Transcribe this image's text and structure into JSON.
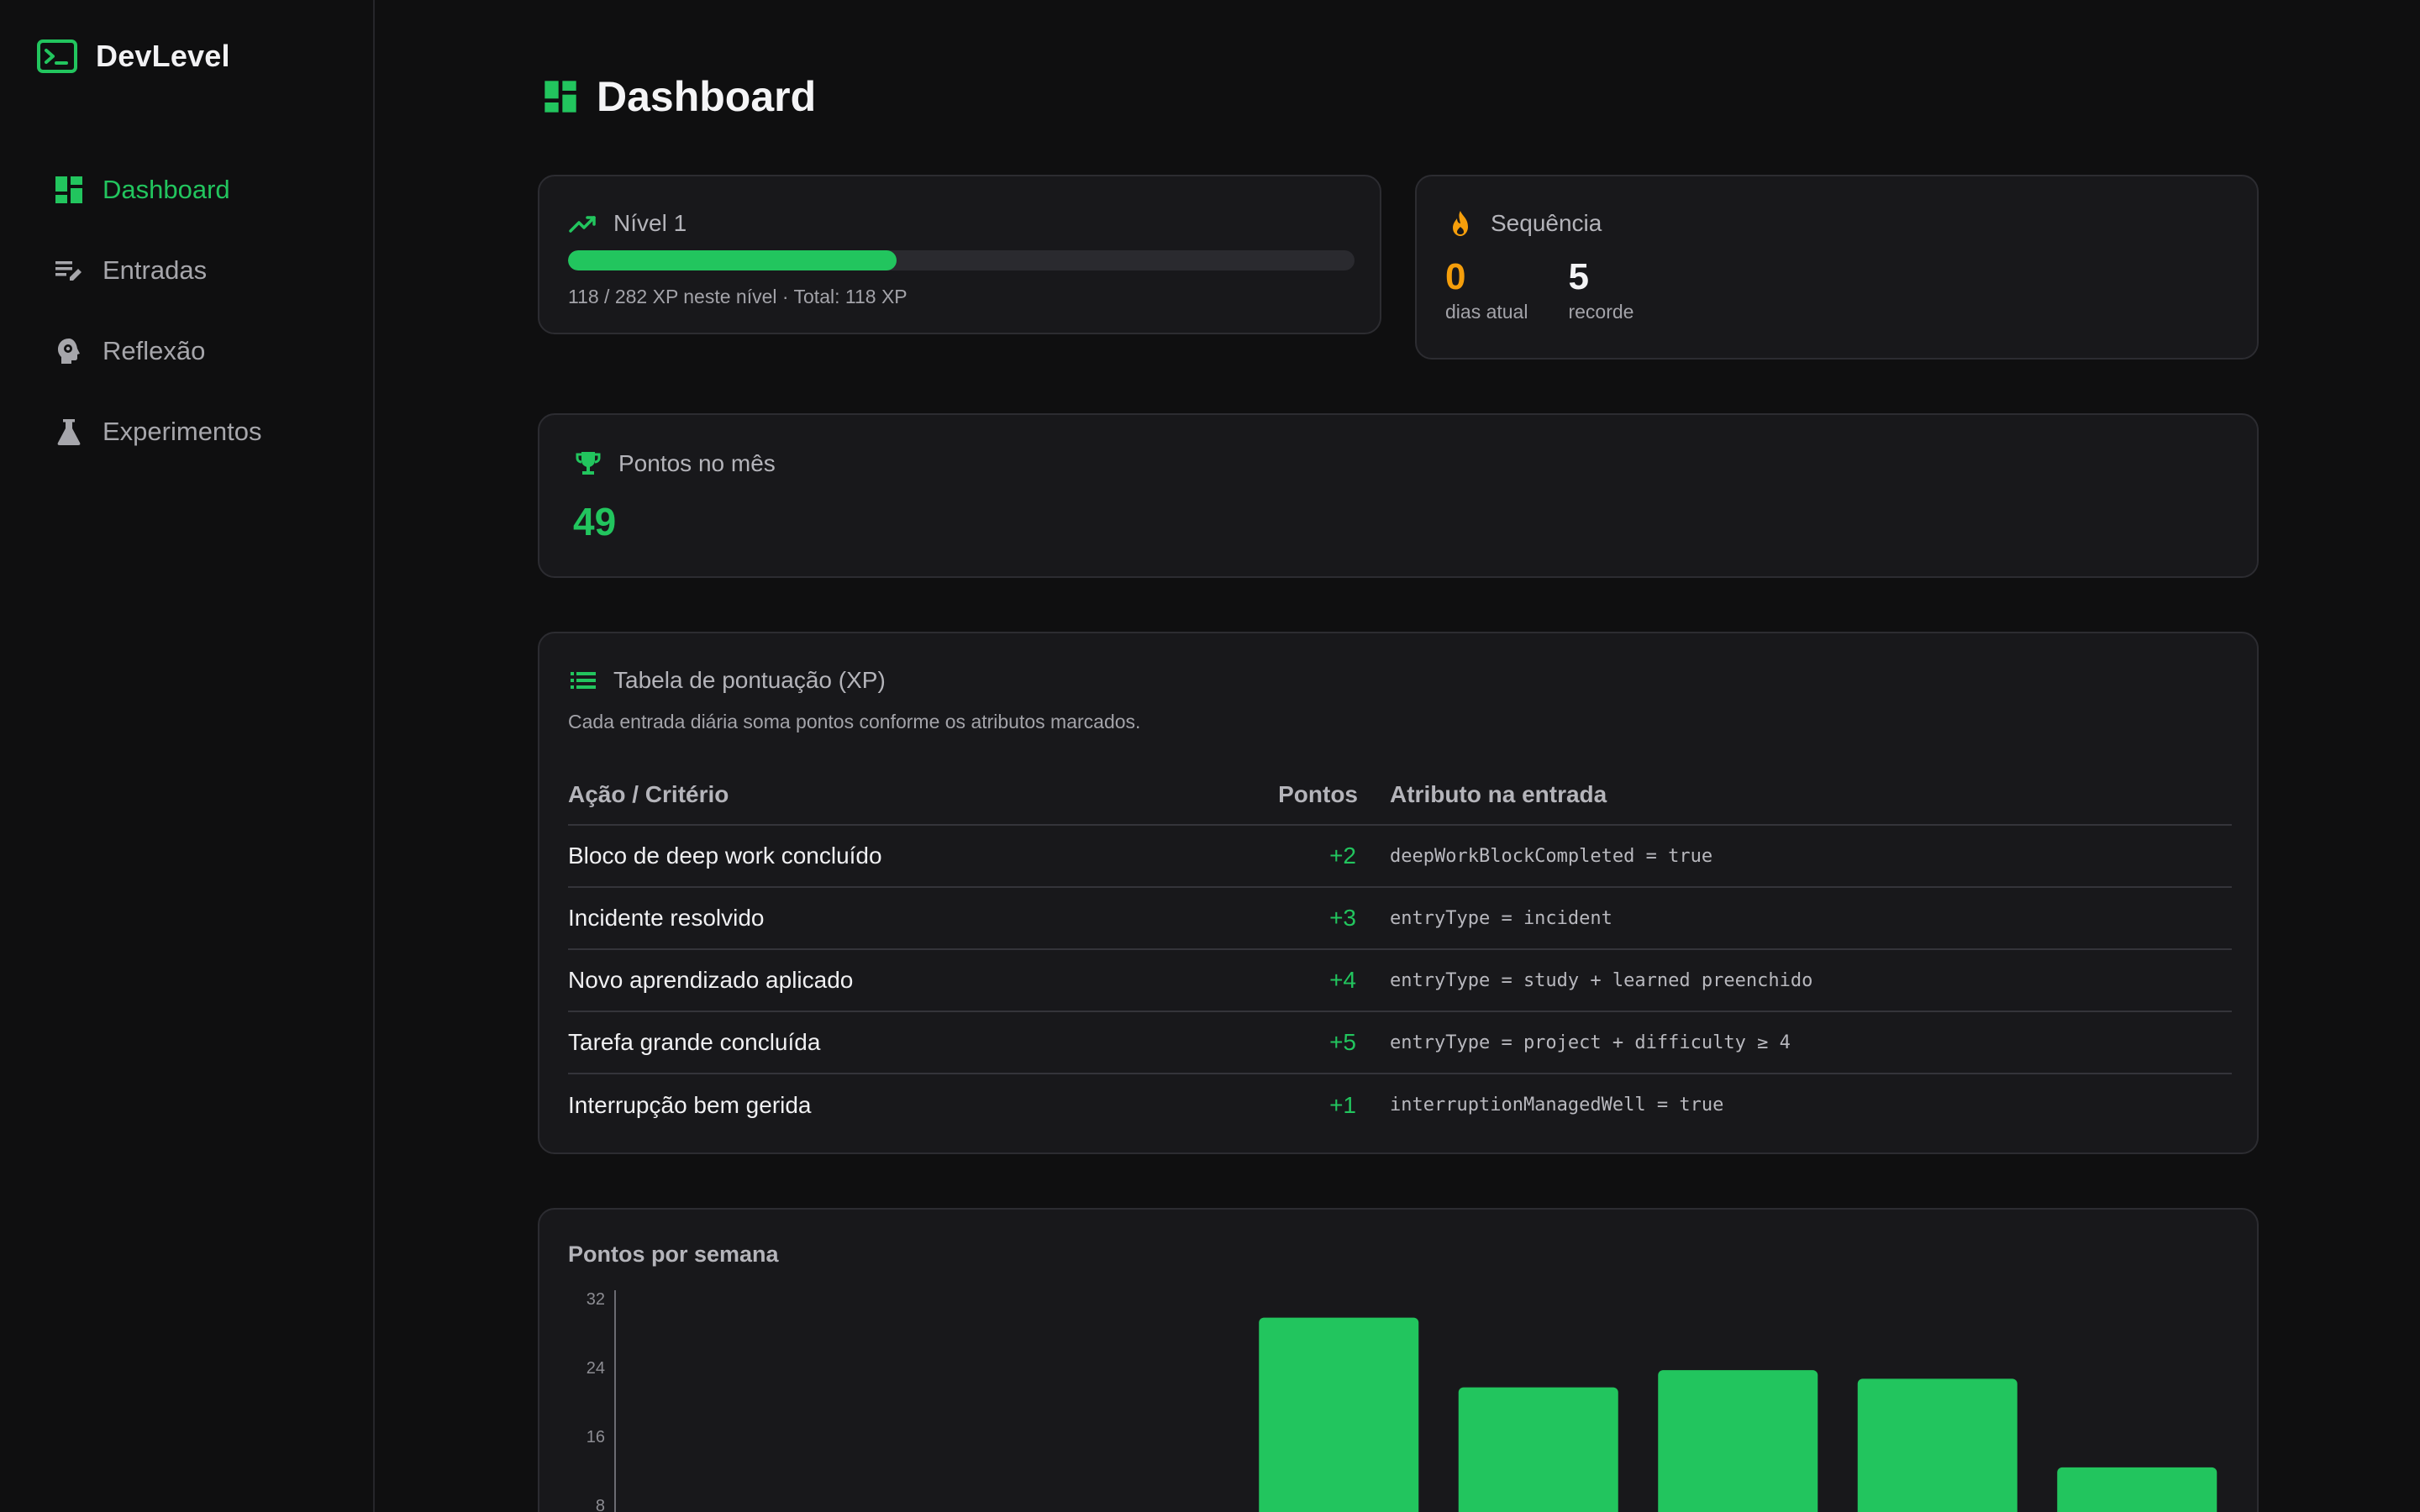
{
  "brand": {
    "name": "DevLevel",
    "accent": "#22c55e"
  },
  "sidebar": {
    "items": [
      {
        "label": "Dashboard",
        "icon": "dashboard-icon",
        "active": true
      },
      {
        "label": "Entradas",
        "icon": "edit-list-icon",
        "active": false
      },
      {
        "label": "Reflexão",
        "icon": "head-gear-icon",
        "active": false
      },
      {
        "label": "Experimentos",
        "icon": "flask-icon",
        "active": false
      }
    ]
  },
  "page": {
    "title": "Dashboard"
  },
  "level": {
    "title": "Nível 1",
    "progress_fraction": 0.418,
    "progress_text": "118 / 282 XP neste nível · Total: 118 XP"
  },
  "streak": {
    "title": "Sequência",
    "current_value": "0",
    "current_label": "dias atual",
    "record_value": "5",
    "record_label": "recorde"
  },
  "points_month": {
    "title": "Pontos no mês",
    "value": "49"
  },
  "xp_table": {
    "title": "Tabela de pontuação (XP)",
    "subtitle": "Cada entrada diária soma pontos conforme os atributos marcados.",
    "headers": [
      "Ação / Critério",
      "Pontos",
      "Atributo na entrada"
    ],
    "rows": [
      [
        "Bloco de deep work concluído",
        "+2",
        "deepWorkBlockCompleted = true"
      ],
      [
        "Incidente resolvido",
        "+3",
        "entryType = incident"
      ],
      [
        "Novo aprendizado aplicado",
        "+4",
        "entryType = study + learned preenchido"
      ],
      [
        "Tarefa grande concluída",
        "+5",
        "entryType = project + difficulty ≥ 4"
      ],
      [
        "Interrupção bem gerida",
        "+1",
        "interruptionManagedWell = true"
      ]
    ]
  },
  "chart_data": {
    "type": "bar",
    "title": "Pontos por semana",
    "ylim": [
      0,
      32
    ],
    "yticks": [
      "32",
      "24",
      "16",
      "8"
    ],
    "values": [
      0,
      0,
      0,
      29.7,
      21.6,
      23.6,
      22.6,
      12.3
    ],
    "color": "#22c55e",
    "grid": false
  }
}
